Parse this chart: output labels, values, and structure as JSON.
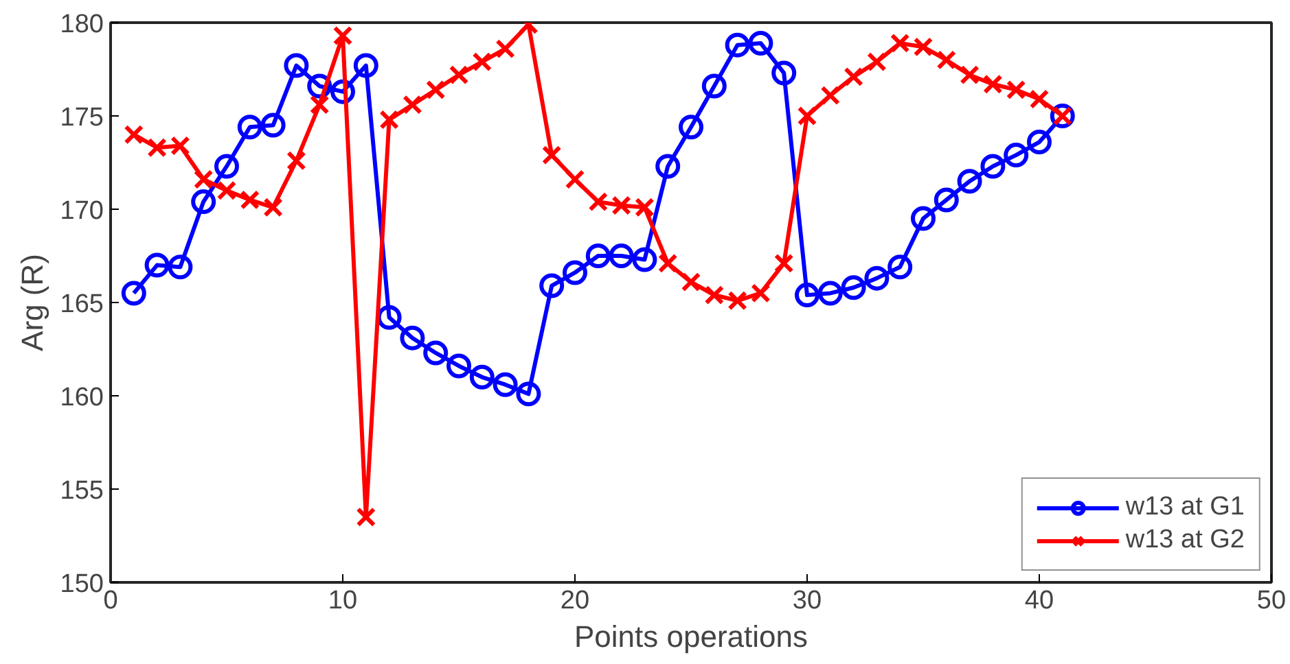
{
  "chart_data": {
    "type": "line",
    "xlabel": "Points operations",
    "ylabel": "Arg (R)",
    "x": [
      1,
      2,
      3,
      4,
      5,
      6,
      7,
      8,
      9,
      10,
      11,
      12,
      13,
      14,
      15,
      16,
      17,
      18,
      19,
      20,
      21,
      22,
      23,
      24,
      25,
      26,
      27,
      28,
      29,
      30,
      31,
      32,
      33,
      34,
      35,
      36,
      37,
      38,
      39,
      40,
      41
    ],
    "series": [
      {
        "name": "w13 at G1",
        "color": "#0000ff",
        "marker": "circle",
        "values": [
          165.5,
          167,
          166.9,
          170.4,
          172.3,
          174.4,
          174.5,
          177.7,
          176.6,
          176.3,
          177.7,
          164.2,
          163.1,
          162.3,
          161.6,
          161,
          160.6,
          160.1,
          165.9,
          166.6,
          167.5,
          167.5,
          167.3,
          172.3,
          174.4,
          176.6,
          178.8,
          178.9,
          177.3,
          165.4,
          165.5,
          165.8,
          166.3,
          166.9,
          169.5,
          170.5,
          171.5,
          172.3,
          172.9,
          173.6,
          175
        ]
      },
      {
        "name": "w13 at G2",
        "color": "#ff0000",
        "marker": "cross",
        "values": [
          174,
          173.3,
          173.4,
          171.6,
          171,
          170.5,
          170.1,
          172.6,
          175.6,
          179.3,
          153.5,
          174.8,
          175.6,
          176.4,
          177.2,
          177.9,
          178.6,
          179.9,
          172.9,
          171.6,
          170.4,
          170.2,
          170.1,
          167.1,
          166.1,
          165.4,
          165.1,
          165.5,
          167.1,
          175,
          176.1,
          177.1,
          177.9,
          178.9,
          178.7,
          178,
          177.2,
          176.7,
          176.4,
          175.9,
          175
        ]
      }
    ],
    "xlim": [
      0,
      50
    ],
    "xticks": [
      0,
      10,
      20,
      30,
      40,
      50
    ],
    "ylim": [
      150,
      180
    ],
    "yticks": [
      150,
      155,
      160,
      165,
      170,
      175,
      180
    ],
    "grid": false,
    "legend": "bottom right",
    "line_style": "solid"
  }
}
